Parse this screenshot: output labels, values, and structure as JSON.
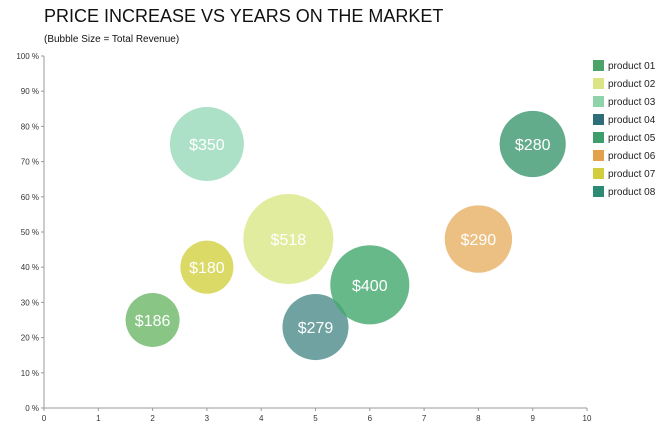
{
  "chart_data": {
    "type": "scatter",
    "title": "PRICE INCREASE VS YEARS ON THE MARKET",
    "subtitle": "(Bubble Size = Total Revenue)",
    "xlabel": "",
    "ylabel": "",
    "xlim": [
      0,
      10
    ],
    "ylim": [
      0,
      100
    ],
    "x_ticks": [
      0,
      1,
      2,
      3,
      4,
      5,
      6,
      7,
      8,
      9,
      10
    ],
    "y_ticks": [
      0,
      10,
      20,
      30,
      40,
      50,
      60,
      70,
      80,
      90,
      100
    ],
    "y_tick_suffix": " %",
    "grid": false,
    "legend_position": "right",
    "series": [
      {
        "name": "product 01",
        "x": 2,
        "y": 25,
        "size": 186,
        "label": "$186",
        "color": "#6fba6b"
      },
      {
        "name": "product 02",
        "x": 4.5,
        "y": 48,
        "size": 518,
        "label": "$518",
        "color": "#dbe88a"
      },
      {
        "name": "product 03",
        "x": 3,
        "y": 75,
        "size": 350,
        "label": "$350",
        "color": "#9bdabb"
      },
      {
        "name": "product 04",
        "x": 5,
        "y": 23,
        "size": 279,
        "label": "$279",
        "color": "#4f8e8c"
      },
      {
        "name": "product 05",
        "x": 6,
        "y": 35,
        "size": 400,
        "label": "$400",
        "color": "#46aa70"
      },
      {
        "name": "product 06",
        "x": 8,
        "y": 48,
        "size": 290,
        "label": "$290",
        "color": "#e8b266"
      },
      {
        "name": "product 07",
        "x": 3,
        "y": 40,
        "size": 180,
        "label": "$180",
        "color": "#d4d244"
      },
      {
        "name": "product 08",
        "x": 9,
        "y": 75,
        "size": 280,
        "label": "$280",
        "color": "#3f9872"
      }
    ],
    "legend_colors": [
      "#4ca36a",
      "#dbe585",
      "#8fd3aa",
      "#2f6e78",
      "#3d9e6c",
      "#e3a14c",
      "#d2cd3c",
      "#2d8b74"
    ]
  }
}
